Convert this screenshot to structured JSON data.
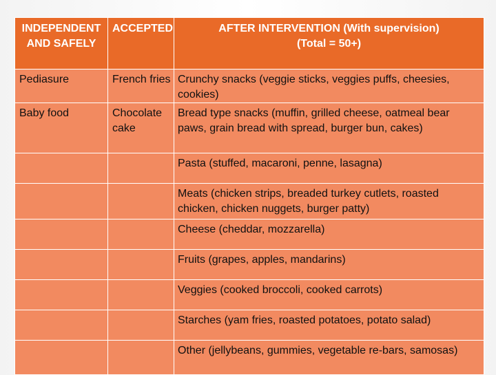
{
  "colors": {
    "header_bg": "#e96a28",
    "row_bg": "#f28a60",
    "header_text": "#ffffff",
    "body_text": "#111111"
  },
  "table": {
    "headers": [
      "INDEPENDENT AND SAFELY",
      "ACCEPTED",
      "AFTER INTERVENTION  (With supervision)\n(Total = 50+)"
    ],
    "rows": [
      [
        "Pediasure",
        "French fries",
        "Crunchy snacks (veggie sticks, veggies puffs, cheesies, cookies)"
      ],
      [
        "Baby food",
        "Chocolate cake",
        "Bread type snacks (muffin, grilled cheese, oatmeal bear paws, grain bread with spread, burger bun, cakes)"
      ],
      [
        "",
        "",
        "Pasta (stuffed, macaroni, penne, lasagna)"
      ],
      [
        "",
        "",
        "Meats (chicken strips, breaded turkey cutlets, roasted chicken, chicken nuggets, burger patty)"
      ],
      [
        "",
        "",
        "Cheese (cheddar, mozzarella)"
      ],
      [
        "",
        "",
        "Fruits (grapes, apples, mandarins)"
      ],
      [
        "",
        "",
        "Veggies (cooked broccoli, cooked carrots)"
      ],
      [
        "",
        "",
        "Starches (yam fries, roasted potatoes, potato salad)"
      ],
      [
        "",
        "",
        "Other (jellybeans, gummies, vegetable re-bars, samosas)"
      ]
    ]
  }
}
